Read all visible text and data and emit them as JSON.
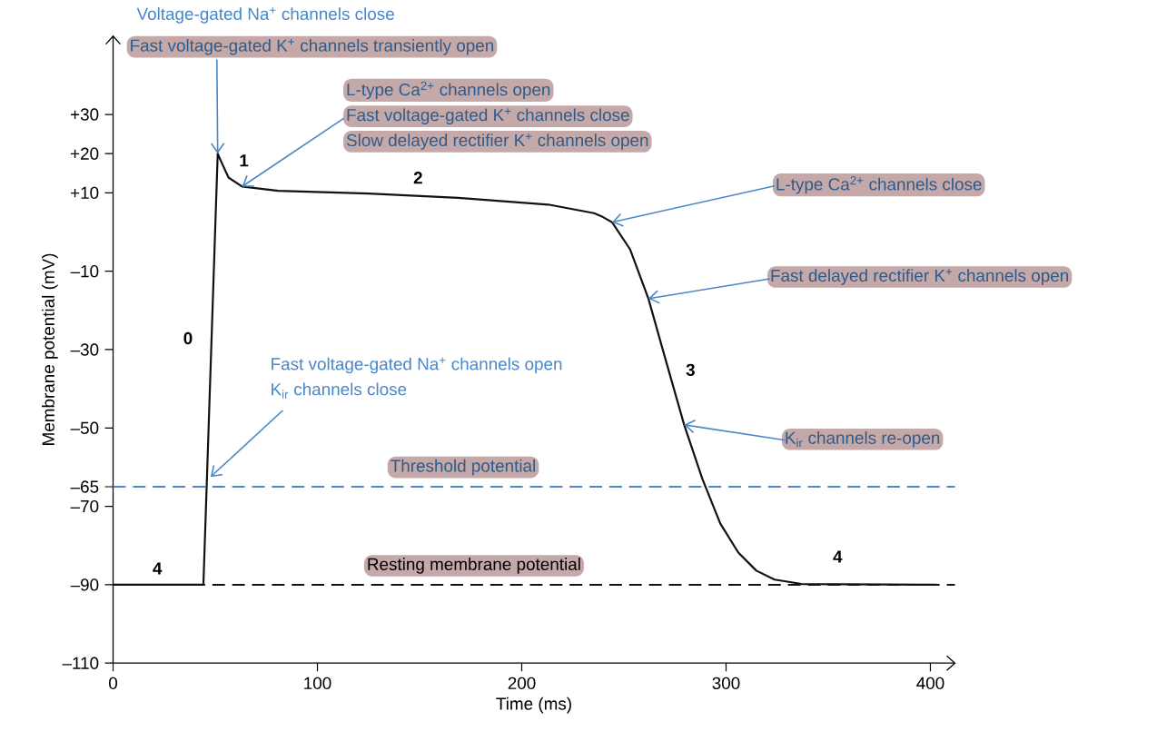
{
  "chart_data": {
    "type": "line",
    "xlabel": "Time (ms)",
    "ylabel": "Membrane potential (mV)",
    "xlim": [
      0,
      412
    ],
    "ylim": [
      -110,
      50
    ],
    "xticks": [
      0,
      100,
      200,
      300,
      400
    ],
    "yticks": [
      {
        "value": 30,
        "label": "+30"
      },
      {
        "value": 20,
        "label": "+20"
      },
      {
        "value": 10,
        "label": "+10"
      },
      {
        "value": -10,
        "label": "–10"
      },
      {
        "value": -30,
        "label": "–30"
      },
      {
        "value": -50,
        "label": "–50"
      },
      {
        "value": -65,
        "label": "–65"
      },
      {
        "value": -70,
        "label": "–70"
      },
      {
        "value": -90,
        "label": "–90"
      },
      {
        "value": -110,
        "label": "–110"
      }
    ],
    "x": [
      0,
      44.2,
      51.2,
      53.4,
      56.5,
      63.1,
      80.8,
      125,
      169,
      213,
      235.4,
      239.8,
      244.2,
      253,
      262,
      270.7,
      279.5,
      288.4,
      297.2,
      306,
      314.8,
      323.7,
      336.9,
      403
    ],
    "series": [
      {
        "color": "#111111",
        "values": [
          -90,
          -90,
          20,
          17.4,
          13.9,
          11.6,
          10.5,
          9.8,
          8.7,
          7,
          4.8,
          3.8,
          2.5,
          -4.4,
          -17,
          -33.1,
          -49.2,
          -63,
          -74.4,
          -81.8,
          -86.4,
          -88.7,
          -89.8,
          -90
        ]
      }
    ],
    "ref_lines": [
      {
        "axis": "y",
        "value": -65,
        "label": "Threshold potential",
        "color": "#4a86c8",
        "line_style": "dashed"
      },
      {
        "axis": "y",
        "value": -90,
        "label": "Resting membrane potential",
        "color": "#111111",
        "line_style": "dashed"
      }
    ],
    "annotations": [
      "Voltage-gated Na$^{+}$ channels close",
      {
        "text": "Fast voltage-gated K$^{+}$ channels transiently open",
        "x": 51.2,
        "y": 20
      },
      "L-type Ca$^{2+}$ channels open",
      {
        "text": "Fast voltage-gated K$^{+}$ channels close",
        "x": 63.1,
        "y": 11.6
      },
      "Slow delayed rectifier K$^{+}$ channels open",
      {
        "text": "L-type Ca$^{2+}$ channels close",
        "x": 244.2,
        "y": 2.5
      },
      {
        "text": "Fast delayed rectifier K$^{+}$ channels open",
        "x": 262,
        "y": -17
      },
      {
        "text": "K$_{ir}$ channels re-open",
        "x": 279.5,
        "y": -49.2
      },
      "Fast voltage-gated Na$^{+}$ channels open",
      {
        "text": "K$_{ir}$ channels close",
        "x": 47.7,
        "y": -62.5
      },
      "0",
      "1",
      "2",
      "3",
      "4",
      "4"
    ]
  }
}
